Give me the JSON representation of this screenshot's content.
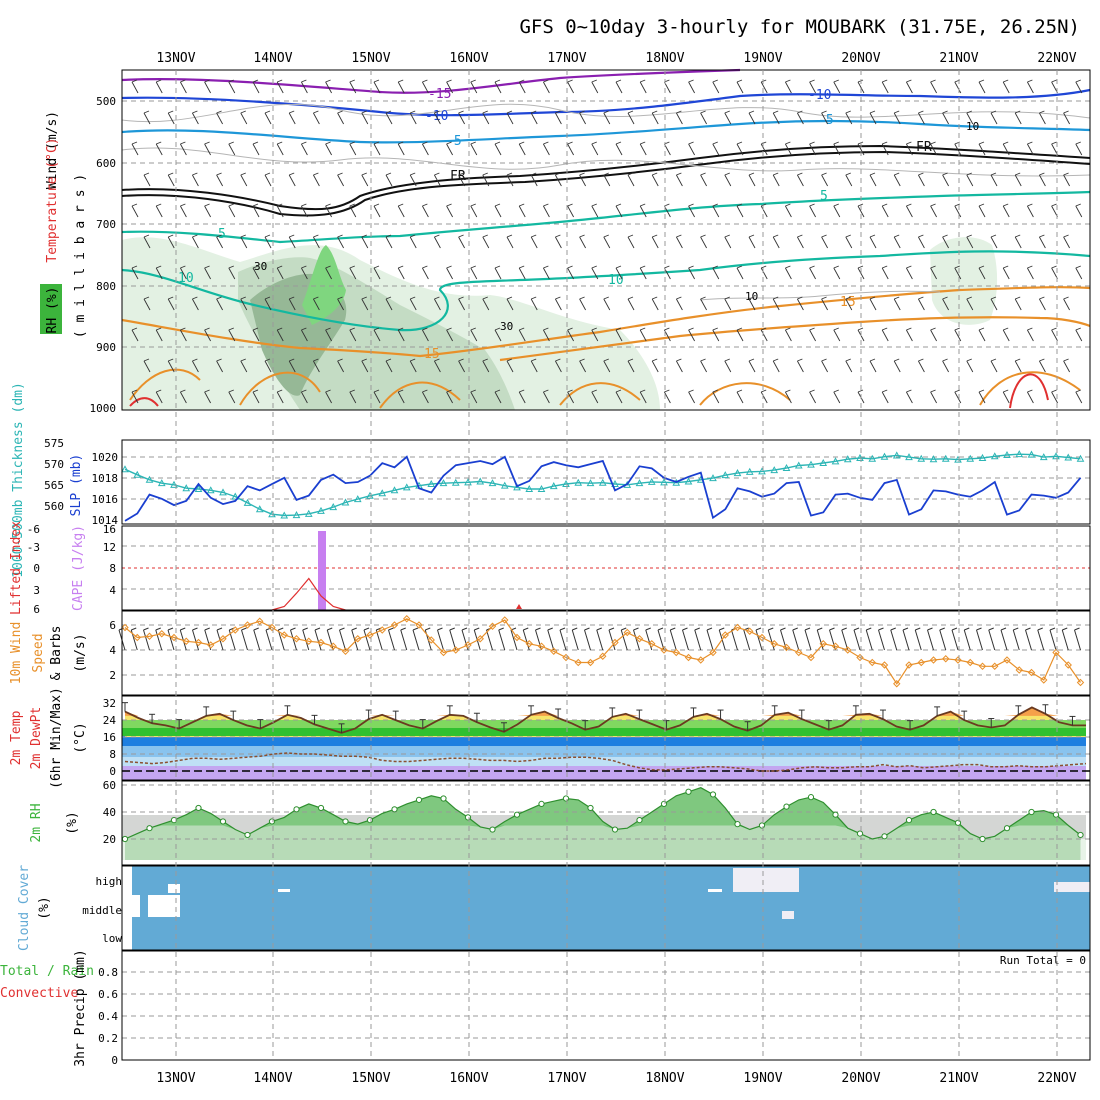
{
  "title": "GFS 0~10day 3-hourly for MOUBARK (31.75E, 26.25N)",
  "dates": [
    "13NOV",
    "14NOV",
    "15NOV",
    "16NOV",
    "17NOV",
    "18NOV",
    "19NOV",
    "20NOV",
    "21NOV",
    "22NOV"
  ],
  "colors": {
    "grid": "#9a9a9a",
    "sky": "#62aad5",
    "rh_green": "#3cb43c",
    "slp": "#1a3fd0",
    "thick": "#2cb5b5",
    "wind": "#e8902a",
    "cape": "#c77ff0",
    "li": "#e03030"
  },
  "panels": {
    "upper": {
      "label_wind": "Wind (m/s)",
      "label_temp": "Temperature (°C)",
      "label_rh": "RH (%)",
      "label_mb": "( m i l l i b a r s )",
      "yticks": [
        "500",
        "600",
        "700",
        "800",
        "900",
        "1000"
      ],
      "contours": {
        "t_m15": "-15",
        "t_m10a": "-10",
        "t_m10b": "-10",
        "t_m5a": "-5",
        "t_m5b": "-5",
        "fr_a": "FR",
        "fr_b": "FR",
        "t_5a": "5",
        "t_5b": "5",
        "t_10a": "10",
        "t_10b": "10",
        "t_15a": "15",
        "t_15b": "15",
        "rh_30a": "30",
        "rh_30b": "30",
        "rh_10a": "10",
        "rh_10b": "10"
      }
    },
    "slp": {
      "label_thick": "1000-500mb Thickness (dm)",
      "label_slp": "SLP (mb)",
      "yticks_left": [
        "575",
        "570",
        "565",
        "560"
      ],
      "yticks_right": [
        "1020",
        "1018",
        "1016",
        "1014"
      ]
    },
    "cape": {
      "label_li": "Lifted Index",
      "label_cape": "CAPE (J/kg)",
      "yticks_left": [
        "-6",
        "-3",
        "0",
        "3",
        "6"
      ],
      "yticks_right": [
        "16",
        "12",
        "8",
        "4"
      ]
    },
    "wind": {
      "label_1": "10m Wind",
      "label_2": "Speed",
      "label_3": "& Barbs",
      "label_units": "(m/s)",
      "yticks": [
        "6",
        "4",
        "2"
      ]
    },
    "temp": {
      "label_1": "2m Temp",
      "label_2": "2m DewPt",
      "label_3": "(6hr Min/Max)",
      "label_units": "(°C)",
      "yticks": [
        "32",
        "24",
        "16",
        "8",
        "0"
      ]
    },
    "rh": {
      "label_1": "2m RH",
      "label_units": "(%)",
      "yticks": [
        "60",
        "40",
        "20"
      ]
    },
    "cloud": {
      "label_1": "Cloud Cover",
      "label_units": "(%)",
      "levels": [
        "high",
        "middle",
        "low"
      ]
    },
    "precip": {
      "label_1": "Total / Rain",
      "label_2": "Convective",
      "label_units": "3hr Precip (mm)",
      "run_total": "Run Total = 0",
      "yticks": [
        "0.8",
        "0.6",
        "0.4",
        "0.2",
        "0"
      ]
    }
  },
  "chart_data": [
    {
      "type": "line",
      "title": "SLP (mb)",
      "ylim": [
        1013.5,
        1022
      ],
      "x_range_days": [
        0,
        9.9
      ],
      "series": [
        {
          "name": "SLP",
          "values": [
            1014.3,
            1015.0,
            1016.8,
            1016.4,
            1015.8,
            1016.2,
            1017.8,
            1016.5,
            1015.9,
            1016.2,
            1017.6,
            1017.2,
            1017.8,
            1018.4,
            1016.3,
            1016.7,
            1018.2,
            1018.7,
            1017.9,
            1018.0,
            1018.6,
            1019.8,
            1019.4,
            1020.4,
            1017.4,
            1017.0,
            1018.6,
            1019.6,
            1019.8,
            1020.0,
            1019.7,
            1020.4,
            1017.6,
            1018.1,
            1019.5,
            1019.9,
            1019.6,
            1019.4,
            1019.7,
            1020.0,
            1017.2,
            1017.8,
            1019.5,
            1019.3,
            1018.4,
            1018.0,
            1018.5,
            1018.9,
            1014.6,
            1015.4,
            1017.4,
            1017.1,
            1016.6,
            1016.9,
            1017.9,
            1018.0,
            1014.8,
            1015.1,
            1016.8,
            1016.9,
            1016.5,
            1016.3,
            1017.9,
            1018.2,
            1014.9,
            1015.4,
            1017.2,
            1017.1,
            1016.8,
            1016.6,
            1017.2,
            1018.0,
            1014.9,
            1015.3,
            1016.8,
            1016.7,
            1016.5,
            1017.0,
            1018.4
          ]
        }
      ]
    },
    {
      "type": "line",
      "title": "1000-500mb Thickness (dm)",
      "ylim": [
        557,
        575
      ],
      "series": [
        {
          "name": "Thickness",
          "values": [
            568.5,
            567.2,
            566.0,
            565.2,
            564.8,
            564.0,
            563.8,
            563.5,
            563.0,
            562.0,
            560.5,
            559.0,
            557.8,
            557.5,
            557.6,
            557.9,
            558.6,
            559.5,
            560.6,
            561.4,
            562.2,
            562.8,
            563.5,
            564.2,
            564.6,
            565.0,
            565.2,
            565.3,
            565.4,
            565.6,
            565.2,
            564.6,
            564.2,
            563.8,
            563.8,
            564.5,
            565.0,
            565.3,
            565.2,
            565.3,
            565.0,
            564.8,
            565.2,
            565.5,
            565.4,
            565.3,
            565.6,
            566.0,
            566.4,
            567.1,
            567.6,
            567.9,
            568.0,
            568.3,
            568.8,
            569.4,
            569.6,
            570.0,
            570.4,
            570.9,
            571.2,
            571.0,
            571.5,
            571.8,
            571.4,
            571.0,
            570.9,
            571.0,
            570.8,
            571.0,
            571.2,
            571.6,
            571.9,
            572.1,
            572.0,
            571.4,
            571.6,
            571.3,
            571.0
          ]
        }
      ]
    },
    {
      "type": "line",
      "title": "Lifted Index / CAPE",
      "ylim": [
        -6,
        6
      ],
      "series": [
        {
          "name": "Lifted Index",
          "values": [
            6,
            6,
            6,
            6,
            6,
            6,
            6,
            6,
            6,
            6,
            6,
            6,
            6,
            5.5,
            3.6,
            1.5,
            4.0,
            5.5,
            6,
            6,
            6,
            6,
            6,
            6,
            6,
            6,
            6,
            6,
            6,
            6,
            6,
            6,
            5.7,
            6,
            6,
            6,
            6,
            6,
            6,
            6,
            6,
            6,
            6,
            6,
            6,
            6,
            6,
            6,
            6,
            6,
            6,
            6,
            6,
            6,
            6,
            6,
            6,
            6,
            6,
            6,
            6,
            6,
            6,
            6,
            6,
            6,
            6,
            6,
            6,
            6,
            6,
            6,
            6,
            6,
            6,
            6,
            6,
            6,
            6
          ]
        },
        {
          "name": "CAPE",
          "values": [
            0,
            0,
            0,
            0,
            0,
            0,
            0,
            0,
            0,
            0,
            0,
            0,
            0,
            0,
            0,
            16,
            0,
            0,
            0,
            0,
            0,
            0,
            0,
            0,
            0,
            0,
            0,
            0,
            0,
            0,
            0,
            0,
            0,
            0,
            0,
            0,
            0,
            0,
            0,
            0,
            0,
            0,
            0,
            0,
            0,
            0,
            0,
            0,
            0,
            0,
            0,
            0,
            0,
            0,
            0,
            0,
            0,
            0,
            0,
            0,
            0,
            0,
            0,
            0,
            0,
            0,
            0,
            0,
            0,
            0,
            0,
            0,
            0,
            0,
            0,
            0,
            0,
            0,
            0
          ]
        }
      ]
    },
    {
      "type": "line",
      "title": "10m Wind Speed (m/s)",
      "ylim": [
        0.5,
        7
      ],
      "series": [
        {
          "name": "Wind",
          "values": [
            5.8,
            5.0,
            5.1,
            5.3,
            5.0,
            4.7,
            4.6,
            4.4,
            4.9,
            5.6,
            6.0,
            6.3,
            5.8,
            5.2,
            4.9,
            4.7,
            4.6,
            4.3,
            3.9,
            4.9,
            5.2,
            5.6,
            6.0,
            6.5,
            6.0,
            4.8,
            3.8,
            4.0,
            4.4,
            4.9,
            5.9,
            6.4,
            5.0,
            4.5,
            4.3,
            3.9,
            3.4,
            3.0,
            3.0,
            3.5,
            4.6,
            5.4,
            4.9,
            4.5,
            4.0,
            3.8,
            3.4,
            3.2,
            3.8,
            5.2,
            5.8,
            5.5,
            5.0,
            4.5,
            4.2,
            3.8,
            3.4,
            4.5,
            4.3,
            4.0,
            3.4,
            3.0,
            2.8,
            1.3,
            2.8,
            3.0,
            3.2,
            3.3,
            3.2,
            3.0,
            2.7,
            2.7,
            3.2,
            2.4,
            2.2,
            1.6,
            3.8,
            2.8,
            1.4
          ]
        }
      ]
    },
    {
      "type": "line",
      "title": "2m Temp / DewPt (°C)",
      "ylim": [
        -2,
        34
      ],
      "series": [
        {
          "name": "2m Temp",
          "values": [
            28,
            25,
            22.5,
            21.5,
            20,
            23,
            26,
            27,
            24,
            21.5,
            20,
            23,
            26.5,
            25,
            22,
            20,
            18,
            20,
            24.5,
            26.5,
            24,
            21.5,
            20,
            23.5,
            26.5,
            26,
            23,
            20.5,
            18.5,
            22,
            26.5,
            28,
            25,
            22.5,
            19.5,
            21,
            25.5,
            27,
            24.5,
            22,
            19.5,
            21.5,
            25.5,
            27,
            24.5,
            21,
            19,
            21.5,
            26.5,
            27.5,
            24.5,
            22,
            19.5,
            21.5,
            26.5,
            27,
            24.5,
            21,
            19.5,
            21.5,
            26,
            28,
            24,
            21.5,
            20.5,
            21.5,
            26.5,
            30,
            27,
            23,
            21.5,
            21.5
          ]
        },
        {
          "name": "2m DewPt",
          "values": [
            4.5,
            4,
            3.5,
            4,
            5,
            6,
            6,
            5.5,
            6,
            6.5,
            7,
            8,
            8.5,
            8,
            8,
            7.5,
            7,
            7,
            6.5,
            5,
            4.5,
            4.5,
            5,
            5.5,
            6,
            6,
            5.5,
            5,
            5,
            4.5,
            5,
            6,
            6,
            6.5,
            6.5,
            6,
            5,
            3,
            1.5,
            0.5,
            0.5,
            1,
            1.5,
            2,
            2,
            1.5,
            1,
            0,
            0,
            0.5,
            1.5,
            2,
            1.5,
            1.5,
            2,
            2,
            3,
            2,
            2.5,
            1.5,
            2,
            2.5,
            3,
            3,
            2,
            2,
            2.5,
            2,
            2,
            2.5,
            3,
            3.5
          ]
        }
      ]
    },
    {
      "type": "area",
      "title": "2m RH (%)",
      "ylim": [
        5,
        62
      ],
      "series": [
        {
          "name": "2m RH",
          "values": [
            20,
            24,
            28,
            31,
            34,
            38,
            43,
            39,
            33,
            27,
            23,
            28,
            33,
            36,
            42,
            46,
            43,
            38,
            33,
            31,
            34,
            39,
            42,
            46,
            49,
            52,
            50,
            42,
            36,
            29,
            27,
            33,
            38,
            42,
            46,
            48,
            50,
            49,
            43,
            33,
            27,
            28,
            34,
            40,
            46,
            52,
            55,
            58,
            53,
            43,
            31,
            27,
            30,
            38,
            44,
            49,
            51,
            47,
            38,
            28,
            24,
            20,
            22,
            28,
            34,
            38,
            40,
            36,
            32,
            24,
            20,
            22,
            28,
            34,
            40,
            41,
            38,
            30,
            23
          ]
        }
      ]
    },
    {
      "type": "table",
      "title": "Cloud Cover (%)",
      "levels": [
        "high",
        "middle",
        "low"
      ],
      "note": "mostly full cover; gaps in high cloud near 19NOV and 22NOV"
    },
    {
      "type": "bar",
      "title": "3hr Precip (mm)",
      "ylim": [
        0,
        0.95
      ],
      "values": [
        0,
        0,
        0,
        0,
        0,
        0,
        0,
        0,
        0,
        0,
        0,
        0,
        0,
        0,
        0,
        0,
        0,
        0,
        0,
        0,
        0,
        0,
        0,
        0,
        0,
        0,
        0,
        0,
        0,
        0,
        0,
        0,
        0,
        0,
        0,
        0,
        0,
        0,
        0,
        0,
        0,
        0,
        0,
        0,
        0,
        0,
        0,
        0,
        0,
        0,
        0,
        0,
        0,
        0,
        0,
        0,
        0,
        0,
        0,
        0,
        0,
        0,
        0,
        0,
        0,
        0,
        0,
        0,
        0,
        0,
        0,
        0,
        0,
        0,
        0,
        0,
        0,
        0,
        0
      ]
    }
  ]
}
